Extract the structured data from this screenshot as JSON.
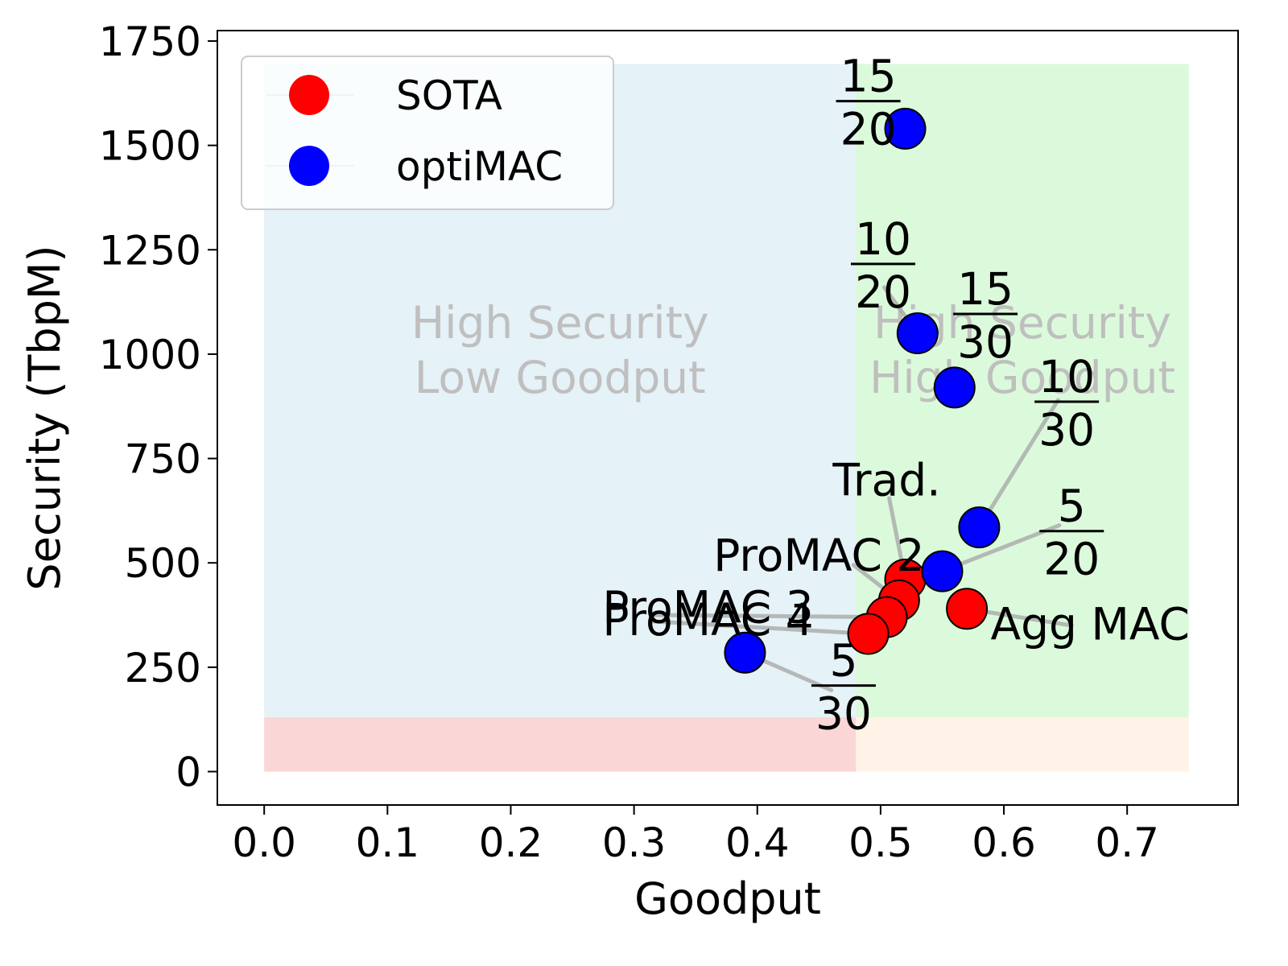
{
  "chart_data": {
    "type": "scatter",
    "xlabel": "Goodput",
    "ylabel": "Security (TbpM)",
    "xlim": [
      -0.038,
      0.79
    ],
    "ylim": [
      -80,
      1775
    ],
    "x_ticks": [
      0.0,
      0.1,
      0.2,
      0.3,
      0.4,
      0.5,
      0.6,
      0.7
    ],
    "x_tick_labels": [
      "0.0",
      "0.1",
      "0.2",
      "0.3",
      "0.4",
      "0.5",
      "0.6",
      "0.7"
    ],
    "y_ticks": [
      0,
      250,
      500,
      750,
      1000,
      1250,
      1500,
      1750
    ],
    "y_tick_labels": [
      "0",
      "250",
      "500",
      "750",
      "1000",
      "1250",
      "1500",
      "1750"
    ],
    "grid": false,
    "legend": {
      "placement": "top-left",
      "entries": [
        {
          "name": "SOTA",
          "color": "#ff0000"
        },
        {
          "name": "optiMAC",
          "color": "#0000ff"
        }
      ]
    },
    "regions": [
      {
        "x": [
          0.0,
          0.48
        ],
        "y": [
          130,
          1695
        ],
        "color": "#add8e6",
        "text": [
          "High Security",
          "Low Goodput"
        ]
      },
      {
        "x": [
          0.48,
          0.75
        ],
        "y": [
          130,
          1695
        ],
        "color": "#90ee90",
        "text": [
          "High Security",
          "High Goodput"
        ]
      },
      {
        "x": [
          0.0,
          0.48
        ],
        "y": [
          0,
          130
        ],
        "color": "#f08080",
        "text": []
      },
      {
        "x": [
          0.48,
          0.75
        ],
        "y": [
          0,
          130
        ],
        "color": "#ffdab9",
        "text": []
      }
    ],
    "series": [
      {
        "name": "SOTA",
        "color": "#ff0000",
        "points": [
          {
            "x": 0.52,
            "y": 460,
            "label": "Trad.",
            "label_x": 0.505,
            "label_y": 700,
            "arrow_x": 0.507,
            "arrow_y": 655
          },
          {
            "x": 0.515,
            "y": 410,
            "label": "ProMAC 2",
            "label_x": 0.45,
            "label_y": 520,
            "arrow_x": 0.478,
            "arrow_y": 495
          },
          {
            "x": 0.505,
            "y": 370,
            "label": "ProMAC 3",
            "label_x": 0.36,
            "label_y": 395,
            "arrow_x": 0.315,
            "arrow_y": 375
          },
          {
            "x": 0.49,
            "y": 330,
            "label": "ProMAC 4",
            "label_x": 0.36,
            "label_y": 365,
            "arrow_x": 0.315,
            "arrow_y": 360
          },
          {
            "x": 0.57,
            "y": 390,
            "label": "Agg MAC",
            "label_x": 0.67,
            "label_y": 355,
            "arrow_x": 0.655,
            "arrow_y": 350
          }
        ]
      },
      {
        "name": "optiMAC",
        "color": "#0000ff",
        "points": [
          {
            "x": 0.52,
            "y": 1540,
            "label_num": "15",
            "label_den": "20",
            "label_x": 0.49,
            "label_y": 1610
          },
          {
            "x": 0.53,
            "y": 1050,
            "label_num": "10",
            "label_den": "20",
            "label_x": 0.502,
            "label_y": 1220,
            "arrow_x": 0.503,
            "arrow_y": 1160
          },
          {
            "x": 0.56,
            "y": 920,
            "label_num": "15",
            "label_den": "30",
            "label_x": 0.585,
            "label_y": 1100,
            "arrow_x": 0.568,
            "arrow_y": 960
          },
          {
            "x": 0.58,
            "y": 585,
            "label_num": "10",
            "label_den": "30",
            "label_x": 0.651,
            "label_y": 890,
            "arrow_x": 0.644,
            "arrow_y": 890
          },
          {
            "x": 0.55,
            "y": 480,
            "label_num": "5",
            "label_den": "20",
            "label_x": 0.655,
            "label_y": 580,
            "arrow_x": 0.645,
            "arrow_y": 590
          },
          {
            "x": 0.39,
            "y": 285,
            "label_num": "5",
            "label_den": "30",
            "label_x": 0.47,
            "label_y": 210,
            "arrow_x": 0.46,
            "arrow_y": 195
          }
        ]
      }
    ]
  }
}
